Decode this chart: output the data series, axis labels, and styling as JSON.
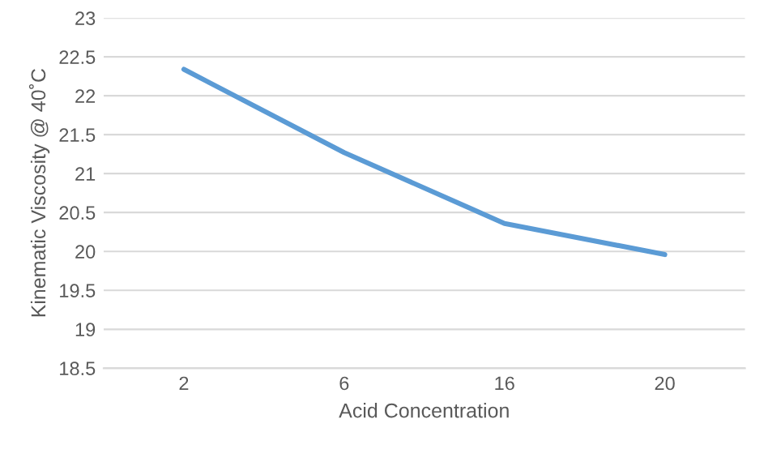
{
  "chart_data": {
    "type": "line",
    "xlabel": "Acid Concentration",
    "ylabel": "Kinematic Viscosity @ 40˚C",
    "categories": [
      "2",
      "6",
      "16",
      "20"
    ],
    "series": [
      {
        "color": "#5b9bd5",
        "values": [
          22.34,
          21.27,
          20.36,
          19.96
        ]
      }
    ],
    "ylim": [
      18.5,
      23
    ],
    "yticks": [
      18.5,
      19,
      19.5,
      20,
      20.5,
      21,
      21.5,
      22,
      22.5,
      23
    ],
    "grid": "y",
    "marker": "none",
    "line_style": "solid"
  }
}
